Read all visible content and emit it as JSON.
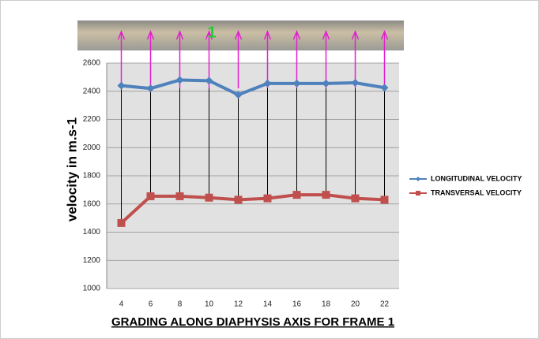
{
  "chart_data": {
    "type": "line",
    "annotation": "1",
    "y_label": "velocity in m.s-1",
    "x_label": "GRADING ALONG DIAPHYSIS AXIS FOR FRAME 1",
    "categories": [
      4,
      6,
      8,
      10,
      12,
      14,
      16,
      18,
      20,
      22
    ],
    "series": [
      {
        "name": "LONGITUDINAL VELOCITY",
        "color": "#4f81bd",
        "marker": "diamond",
        "values": [
          2440,
          2420,
          2480,
          2475,
          2375,
          2455,
          2455,
          2455,
          2460,
          2425
        ]
      },
      {
        "name": "TRANSVERSAL VELOCITY",
        "color": "#c0504d",
        "marker": "square",
        "values": [
          1465,
          1655,
          1655,
          1645,
          1630,
          1640,
          1665,
          1665,
          1640,
          1630
        ]
      }
    ],
    "ylim": [
      1000,
      2600
    ],
    "yticks": [
      1000,
      1200,
      1400,
      1600,
      1800,
      2000,
      2200,
      2400,
      2600
    ],
    "grid": true,
    "legend": "right"
  }
}
